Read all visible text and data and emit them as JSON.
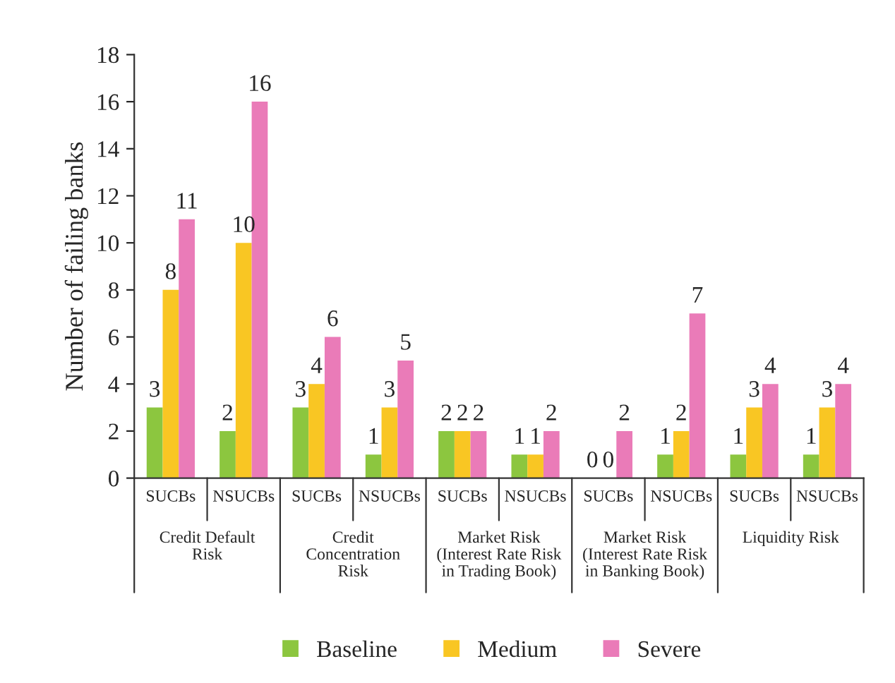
{
  "chart_data": {
    "type": "bar",
    "ylabel": "Number of failing banks",
    "categories": [
      "SUCBs",
      "NSUCBs",
      "SUCBs",
      "NSUCBs",
      "SUCBs",
      "NSUCBs",
      "SUCBs",
      "NSUCBs",
      "SUCBs",
      "NSUCBs"
    ],
    "series": [
      {
        "name": "Baseline",
        "color": "#8cc63f",
        "values": [
          3,
          2,
          3,
          1,
          2,
          1,
          0,
          1,
          1,
          1
        ]
      },
      {
        "name": "Medium",
        "color": "#f9c623",
        "values": [
          8,
          10,
          4,
          3,
          2,
          1,
          0,
          2,
          3,
          3
        ]
      },
      {
        "name": "Severe",
        "color": "#ea7bb8",
        "values": [
          11,
          16,
          6,
          5,
          2,
          2,
          2,
          7,
          4,
          4
        ]
      }
    ],
    "annotations": [
      "Credit Default\nRisk",
      "Credit\nConcentration\nRisk",
      "Market Risk\n(Interest Rate Risk\nin Trading Book)",
      "Market Risk\n(Interest Rate Risk\nin Banking Book)",
      "Liquidity Risk"
    ],
    "ylim": [
      0,
      18
    ],
    "yticks": [
      0,
      2,
      4,
      6,
      8,
      10,
      12,
      14,
      16,
      18
    ],
    "data_labels": true,
    "grid": false,
    "legend": "bottom"
  }
}
